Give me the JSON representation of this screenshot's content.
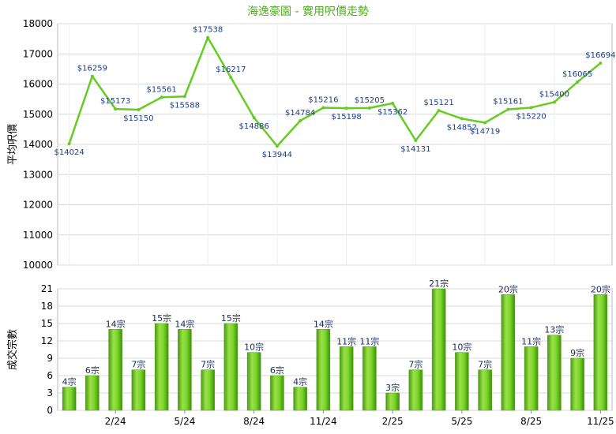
{
  "title": "海逸豪園 - 實用呎價走勢",
  "colors": {
    "line": "#66cc22",
    "bar": "#7ad62a",
    "bar_dark": "#3f8f0c",
    "title": "#4caf1a",
    "label": "#1a3d8a"
  },
  "chart_data": [
    {
      "type": "line",
      "ylabel": "平均呎價",
      "ylim": [
        10000,
        18000
      ],
      "yticks": [
        10000,
        11000,
        12000,
        13000,
        14000,
        15000,
        16000,
        17000,
        18000
      ],
      "values": [
        14024,
        16259,
        15173,
        15150,
        15561,
        15588,
        17538,
        16217,
        14886,
        13944,
        14784,
        15216,
        15198,
        15205,
        15362,
        14131,
        15121,
        14852,
        14719,
        15161,
        15220,
        15400,
        16065,
        16694
      ],
      "labels": [
        "$14024",
        "$16259",
        "$15173",
        "$15150",
        "$15561",
        "$15588",
        "$17538",
        "$16217",
        "$14886",
        "$13944",
        "$14784",
        "$15216",
        "$15198",
        "$15205",
        "$15362",
        "$14131",
        "$15121",
        "$14852",
        "$14719",
        "$15161",
        "$15220",
        "$15400",
        "$16065",
        "$16694"
      ]
    },
    {
      "type": "bar",
      "ylabel": "成交宗數",
      "ylim": [
        0,
        21
      ],
      "yticks": [
        0,
        3,
        6,
        9,
        12,
        15,
        18,
        21
      ],
      "values": [
        4,
        6,
        14,
        7,
        15,
        14,
        7,
        15,
        10,
        6,
        4,
        14,
        11,
        11,
        3,
        7,
        21,
        10,
        7,
        20,
        11,
        13,
        9,
        20
      ],
      "labels": [
        "4宗",
        "6宗",
        "14宗",
        "7宗",
        "15宗",
        "14宗",
        "7宗",
        "15宗",
        "10宗",
        "6宗",
        "4宗",
        "14宗",
        "11宗",
        "11宗",
        "3宗",
        "7宗",
        "21宗",
        "10宗",
        "7宗",
        "20宗",
        "11宗",
        "13宗",
        "9宗",
        "20宗"
      ],
      "x_tick_labels": [
        {
          "index": 2,
          "label": "2/24"
        },
        {
          "index": 5,
          "label": "5/24"
        },
        {
          "index": 8,
          "label": "8/24"
        },
        {
          "index": 11,
          "label": "11/24"
        },
        {
          "index": 14,
          "label": "2/25"
        },
        {
          "index": 17,
          "label": "5/25"
        },
        {
          "index": 20,
          "label": "8/25"
        },
        {
          "index": 23,
          "label": "11/25"
        }
      ]
    }
  ]
}
